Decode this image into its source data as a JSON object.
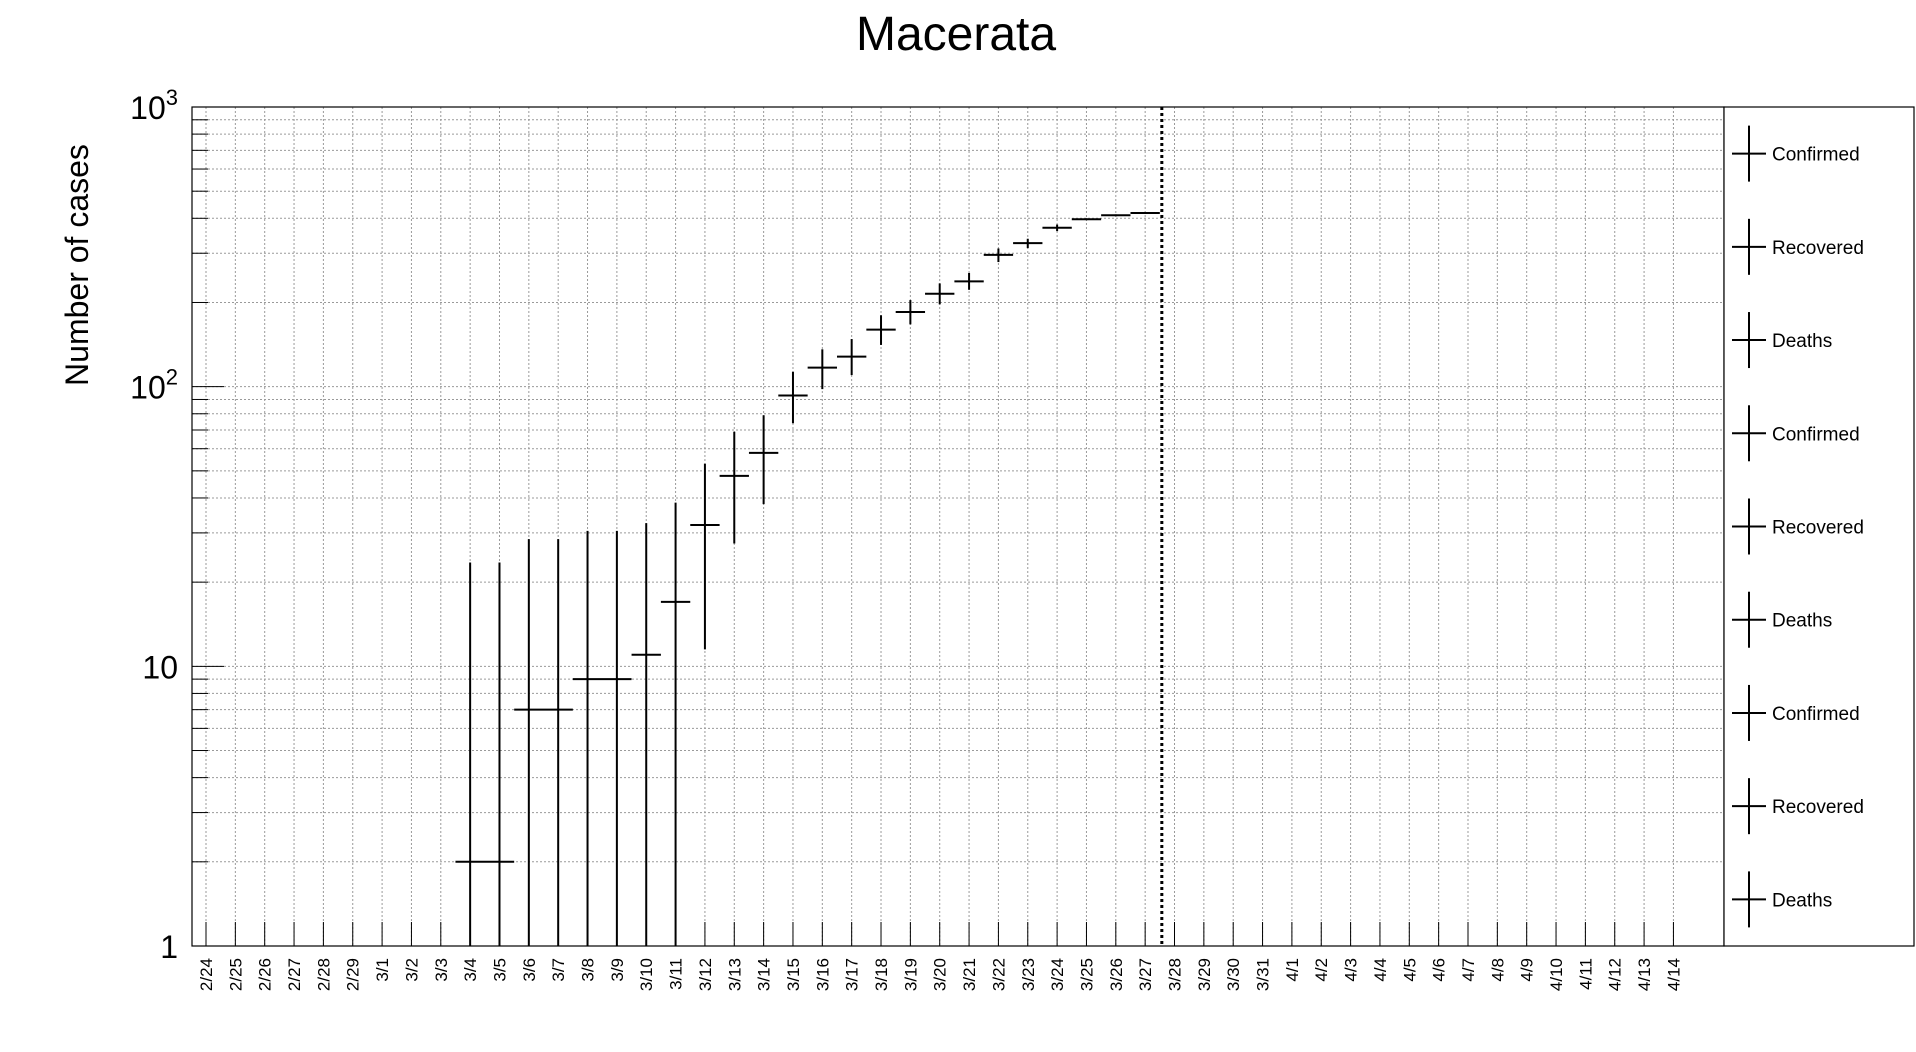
{
  "chart_data": {
    "type": "scatter",
    "title": "Macerata",
    "xlabel": "",
    "ylabel": "Number of cases",
    "y_scale": "log",
    "ylim": [
      1,
      1000
    ],
    "grid": true,
    "y_tick_labels": [
      {
        "value": 1,
        "base": "1",
        "exp": ""
      },
      {
        "value": 10,
        "base": "10",
        "exp": ""
      },
      {
        "value": 100,
        "base": "10",
        "exp": "2"
      },
      {
        "value": 1000,
        "base": "10",
        "exp": "3"
      }
    ],
    "categories": [
      "2/24",
      "2/25",
      "2/26",
      "2/27",
      "2/28",
      "2/29",
      "3/1",
      "3/2",
      "3/3",
      "3/4",
      "3/5",
      "3/6",
      "3/7",
      "3/8",
      "3/9",
      "3/10",
      "3/11",
      "3/12",
      "3/13",
      "3/14",
      "3/15",
      "3/16",
      "3/17",
      "3/18",
      "3/19",
      "3/20",
      "3/21",
      "3/22",
      "3/23",
      "3/24",
      "3/25",
      "3/26",
      "3/27",
      "3/28",
      "3/29",
      "3/30",
      "3/31",
      "4/1",
      "4/2",
      "4/3",
      "4/4",
      "4/5",
      "4/6",
      "4/7",
      "4/8",
      "4/9",
      "4/10",
      "4/11",
      "4/12",
      "4/13",
      "4/14"
    ],
    "series": [
      {
        "points": [
          {
            "x": "3/4",
            "x_end": "3/5",
            "y": 2,
            "err_low": 1,
            "err_high": 23.5
          },
          {
            "x": "3/6",
            "x_end": "3/7",
            "y": 7,
            "err_low": 1,
            "err_high": 28.5
          },
          {
            "x": "3/8",
            "x_end": "3/9",
            "y": 9,
            "err_low": 1,
            "err_high": 30.5
          },
          {
            "x": "3/10",
            "y": 11,
            "err_low": 1,
            "err_high": 32.5
          },
          {
            "x": "3/11",
            "y": 17,
            "err_low": 1,
            "err_high": 38.5
          },
          {
            "x": "3/12",
            "y": 32,
            "err_low": 11.5,
            "err_high": 53
          },
          {
            "x": "3/13",
            "y": 48,
            "err_low": 27.5,
            "err_high": 69
          },
          {
            "x": "3/14",
            "y": 58,
            "err_low": 38,
            "err_high": 79
          },
          {
            "x": "3/15",
            "y": 93,
            "err_low": 74,
            "err_high": 113
          },
          {
            "x": "3/16",
            "y": 117,
            "err_low": 98,
            "err_high": 136
          },
          {
            "x": "3/17",
            "y": 128,
            "err_low": 110,
            "err_high": 148
          },
          {
            "x": "3/18",
            "y": 160,
            "err_low": 141,
            "err_high": 180
          },
          {
            "x": "3/19",
            "y": 185,
            "err_low": 167,
            "err_high": 204
          },
          {
            "x": "3/20",
            "y": 215,
            "err_low": 197,
            "err_high": 234
          },
          {
            "x": "3/21",
            "y": 238,
            "err_low": 222,
            "err_high": 255
          },
          {
            "x": "3/22",
            "y": 296,
            "err_low": 279,
            "err_high": 312
          },
          {
            "x": "3/23",
            "y": 326,
            "err_low": 313,
            "err_high": 338
          },
          {
            "x": "3/24",
            "y": 370,
            "err_low": 360,
            "err_high": 380
          },
          {
            "x": "3/25",
            "y": 397,
            "err_low": 394,
            "err_high": 400
          },
          {
            "x": "3/26",
            "y": 410,
            "err_low": 407,
            "err_high": 413
          },
          {
            "x": "3/27",
            "y": 418,
            "err_low": 415,
            "err_high": 421
          }
        ]
      }
    ],
    "vertical_marker": {
      "x": "3/28",
      "style": "dotted"
    },
    "legend": {
      "position": "right",
      "entries": [
        "Confirmed",
        "Recovered",
        "Deaths",
        "Confirmed",
        "Recovered",
        "Deaths",
        "Confirmed",
        "Recovered",
        "Deaths"
      ]
    }
  }
}
